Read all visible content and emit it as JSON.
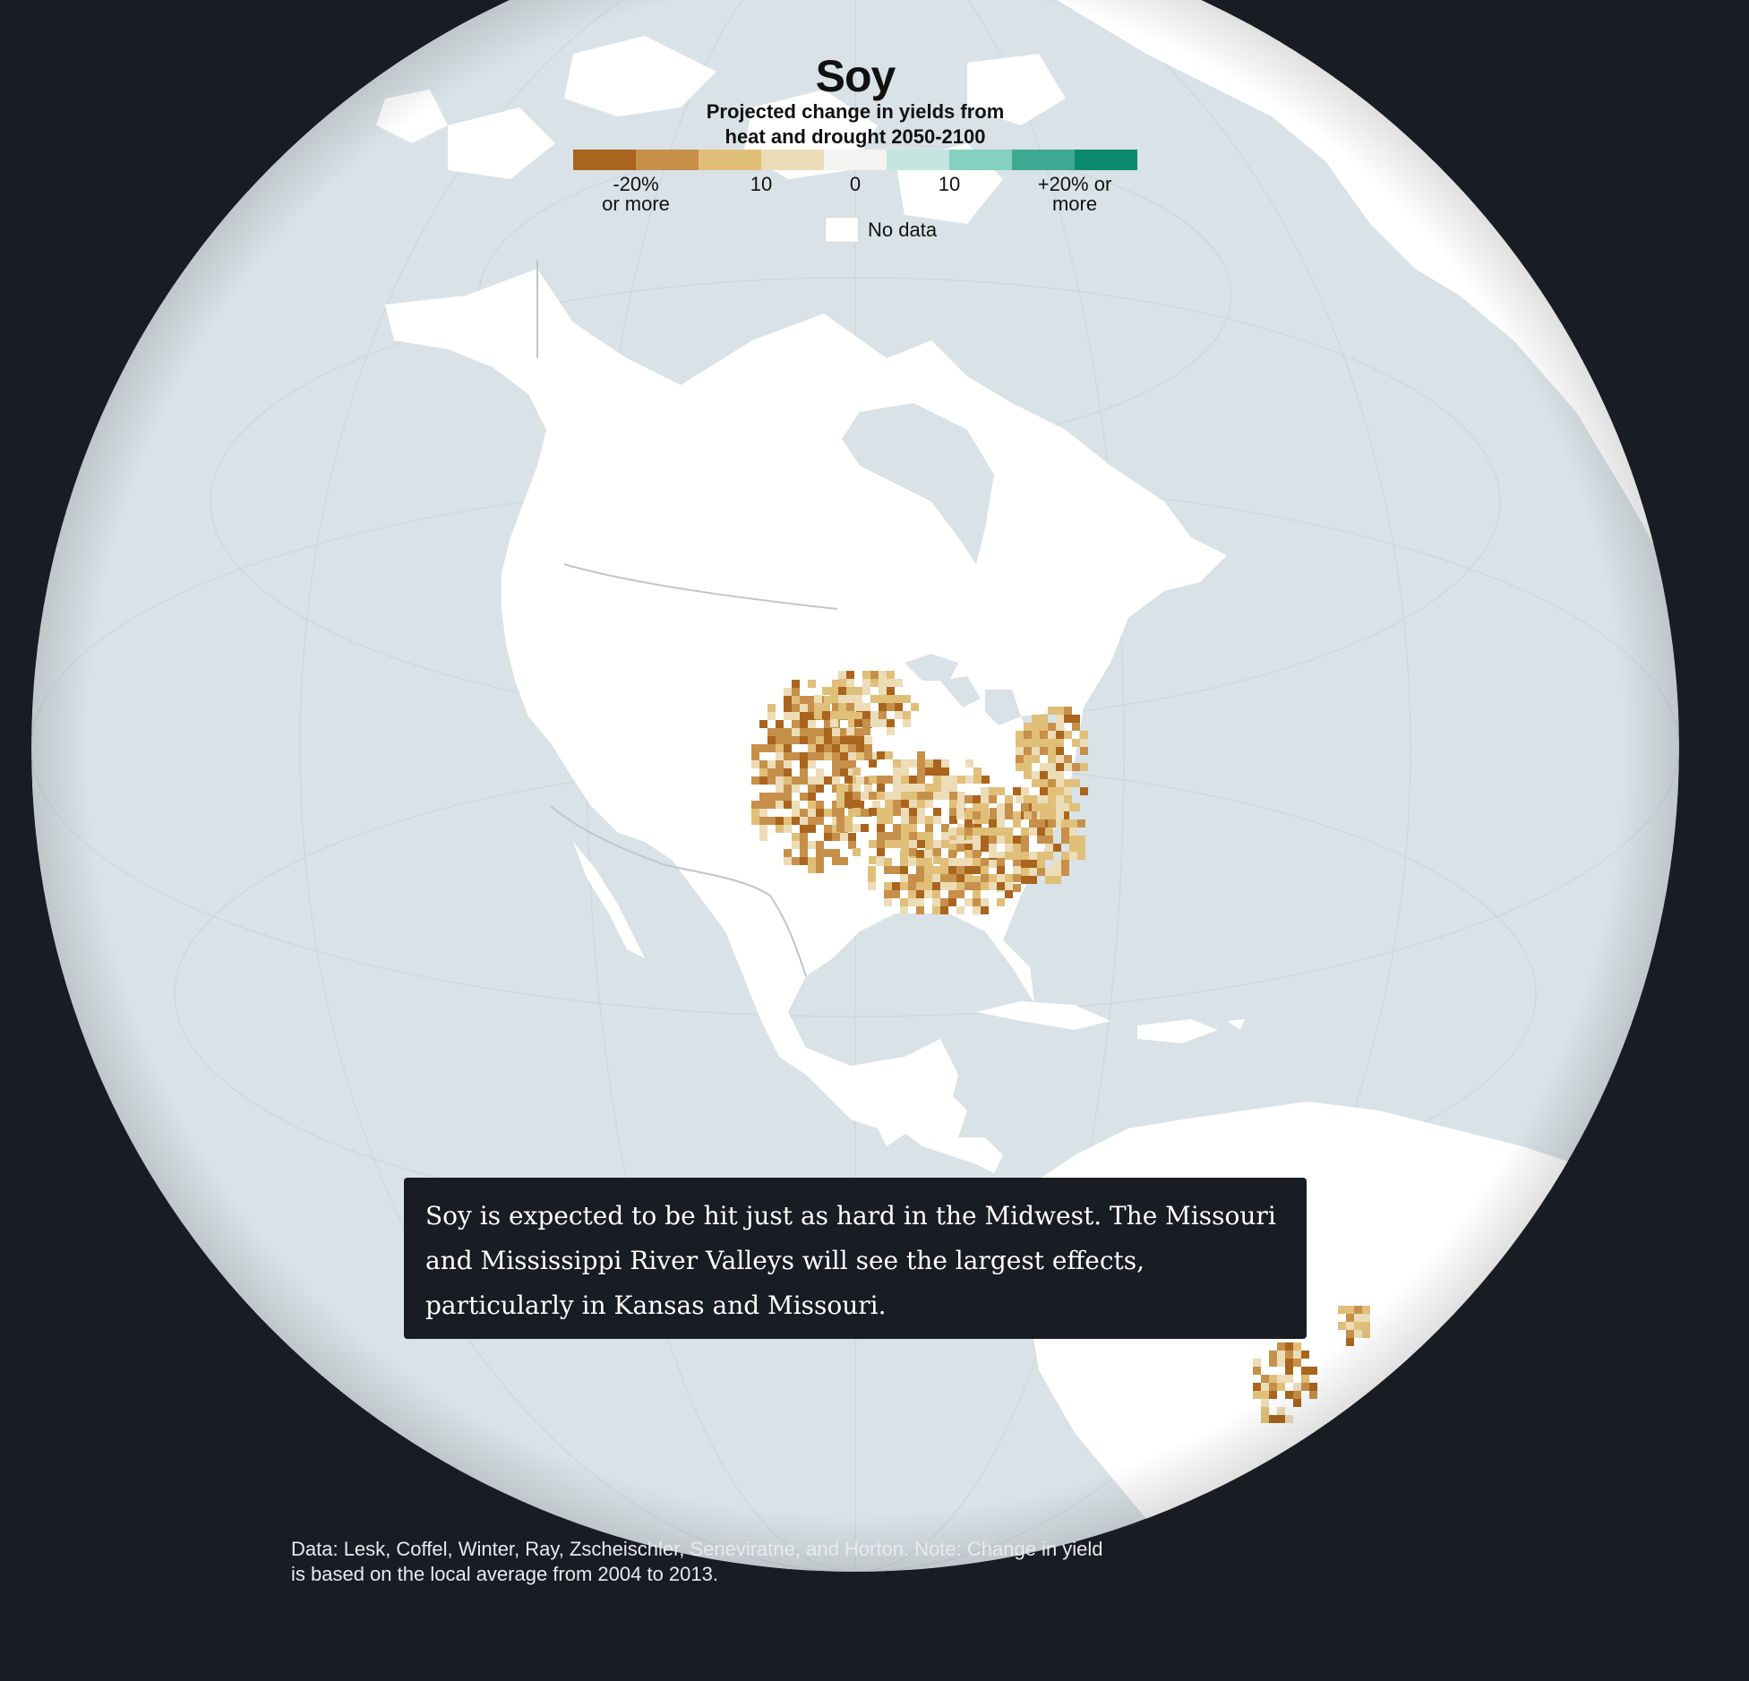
{
  "legend": {
    "title": "Soy",
    "subtitle_line1": "Projected change in yields from",
    "subtitle_line2": "heat and drought 2050-2100",
    "colors": [
      "#a9651e",
      "#c6904a",
      "#e0bf78",
      "#ecdcb8",
      "#f3f3f1",
      "#c4e6de",
      "#86d0c0",
      "#3faa94",
      "#0b8a6d"
    ],
    "ticks": {
      "neg_max_line1": "-20%",
      "neg_max_line2": "or more",
      "neg_mid": "10",
      "zero": "0",
      "pos_mid": "10",
      "pos_max_line1": "+20% or",
      "pos_max_line2": "more"
    },
    "no_data_label": "No data"
  },
  "map": {
    "projection": "orthographic",
    "center": "North America",
    "ocean_color": "#d9e2e6",
    "land_color": "#ffffff",
    "background_color": "#181c23"
  },
  "caption": {
    "text": "Soy is expected to be hit just as hard in the Midwest. The Missouri and Mississippi River Valleys will see the largest effects, particularly in Kansas and Missouri."
  },
  "source": {
    "line1": "Data: Lesk, Coffel, Winter, Ray, Zscheischler, Seneviratne, and Horton. Note: Change in yield",
    "line2": "is based on the local average from 2004 to 2013."
  }
}
